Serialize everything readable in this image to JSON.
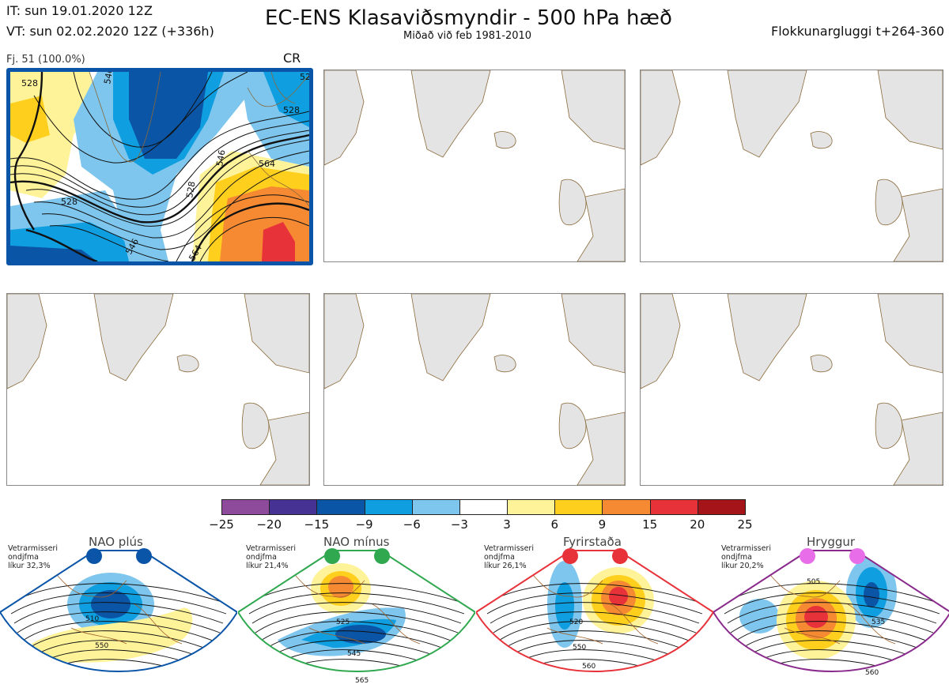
{
  "header": {
    "it": "IT: sun 19.01.2020 12Z",
    "vt": "VT: sun 02.02.2020 12Z  (+336h)",
    "title": "EC-ENS Klasaviðsmyndir - 500 hPa hæð",
    "subtitle": "Miðað við feb 1981-2010",
    "window": "Flokkunargluggi t+264-360"
  },
  "active_panel": {
    "member": "Fj. 51 (100.0%)",
    "code": "CR",
    "contour_labels": [
      "528",
      "546",
      "528",
      "528",
      "546",
      "564",
      "528",
      "546",
      "564",
      "528"
    ]
  },
  "colorbar": {
    "ticks": [
      "−25",
      "−20",
      "−15",
      "−9",
      "−6",
      "−3",
      "3",
      "6",
      "9",
      "15",
      "20",
      "25"
    ],
    "colors": [
      "#8e4b9c",
      "#463293",
      "#0b55a6",
      "#0f9ee0",
      "#7ec6ee",
      "#ffffff",
      "#fff39a",
      "#ffcf1e",
      "#f58a33",
      "#e8323a",
      "#a51419"
    ]
  },
  "regimes": [
    {
      "name": "NAO plús",
      "info": [
        "Vetrarmisseri",
        "ondjfma",
        "líkur 32,3%"
      ],
      "color": "#0a55a8",
      "dot": "#0a55a8",
      "labels": [
        "510",
        "550"
      ]
    },
    {
      "name": "NAO mínus",
      "info": [
        "Vetrarmisseri",
        "ondjfma",
        "líkur 21,4%"
      ],
      "color": "#2fa84f",
      "dot": "#2fa84f",
      "labels": [
        "525",
        "545",
        "565"
      ]
    },
    {
      "name": "Fyrirstaða",
      "info": [
        "Vetrarmisseri",
        "ondjfma",
        "líkur 26,1%"
      ],
      "color": "#e8323a",
      "dot": "#e8323a",
      "labels": [
        "520",
        "550",
        "560"
      ]
    },
    {
      "name": "Hryggur",
      "info": [
        "Vetrarmisseri",
        "ondjfma",
        "líkur 20,2%"
      ],
      "color": "#8a2a8c",
      "dot": "#e86de8",
      "labels": [
        "505",
        "535",
        "560"
      ]
    }
  ]
}
